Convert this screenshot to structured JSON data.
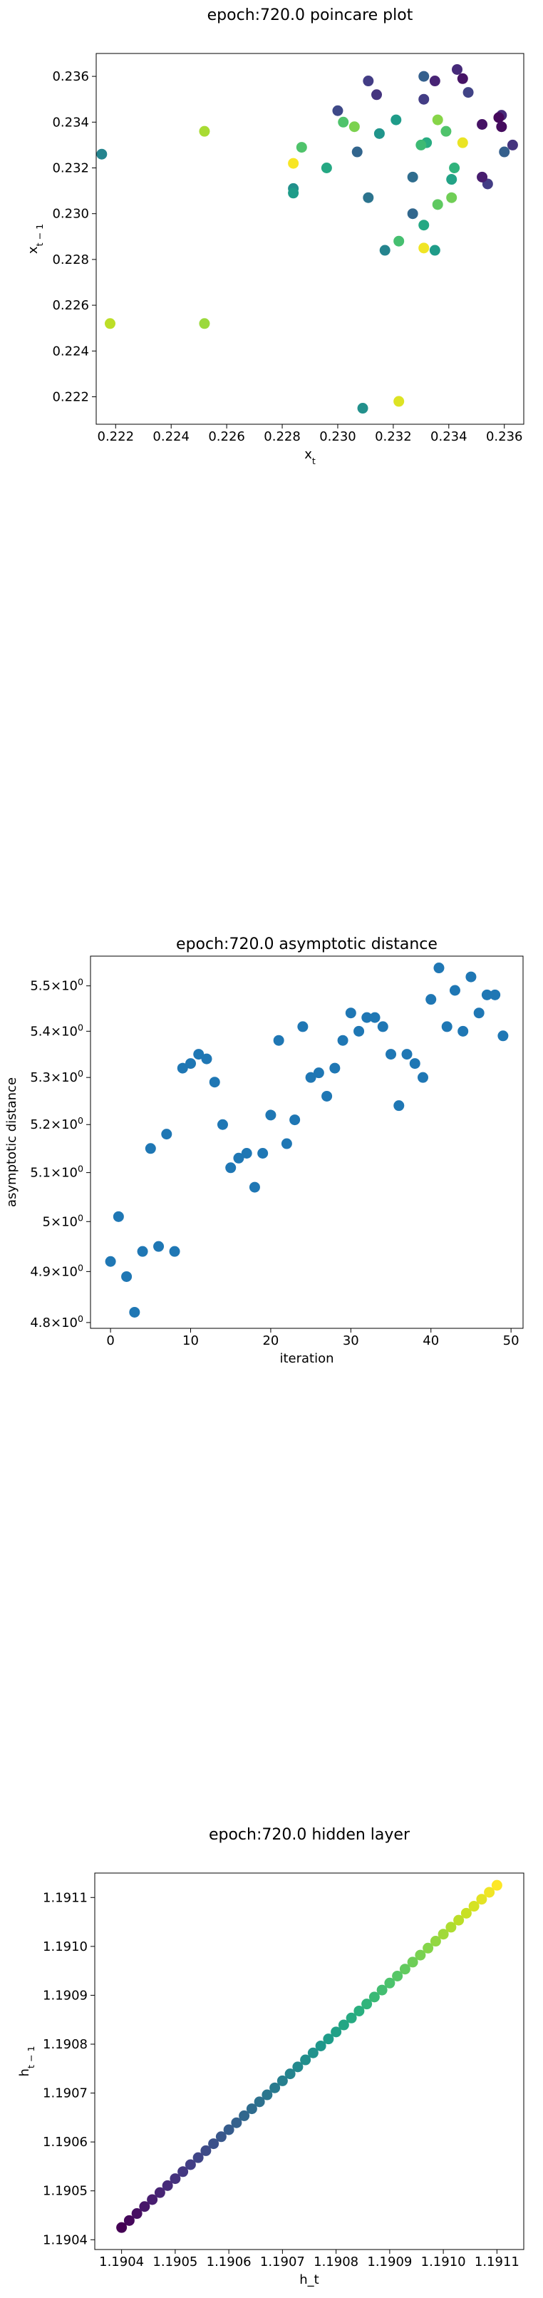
{
  "palette": [
    "#440154",
    "#482173",
    "#433e85",
    "#38598c",
    "#2d708e",
    "#25858e",
    "#1e9b8a",
    "#2ab07f",
    "#52c569",
    "#86d549",
    "#c2df23",
    "#fde725"
  ],
  "chart_data": [
    {
      "type": "scatter",
      "title": "epoch:720.0 poincare plot",
      "xlabel": "x_t",
      "ylabel": "x_{t-1}",
      "xlim": [
        0.2213,
        0.2367
      ],
      "ylim": [
        0.2208,
        0.237
      ],
      "xticks": [
        0.222,
        0.224,
        0.226,
        0.228,
        0.23,
        0.232,
        0.234,
        0.236
      ],
      "yticks": [
        0.222,
        0.224,
        0.226,
        0.228,
        0.23,
        0.232,
        0.234,
        0.236
      ],
      "tick_labels": [
        "0.222",
        "0.224",
        "0.226",
        "0.228",
        "0.230",
        "0.232",
        "0.234",
        "0.236"
      ],
      "colormap": "viridis",
      "points": [
        {
          "x": 0.2343,
          "y": 0.2363,
          "c": 0.12
        },
        {
          "x": 0.2335,
          "y": 0.2358,
          "c": 0.1
        },
        {
          "x": 0.2331,
          "y": 0.236,
          "c": 0.3
        },
        {
          "x": 0.2311,
          "y": 0.2358,
          "c": 0.18
        },
        {
          "x": 0.2314,
          "y": 0.2352,
          "c": 0.15
        },
        {
          "x": 0.2345,
          "y": 0.2359,
          "c": 0.05
        },
        {
          "x": 0.2347,
          "y": 0.2353,
          "c": 0.2
        },
        {
          "x": 0.2359,
          "y": 0.2343,
          "c": 0.12
        },
        {
          "x": 0.2358,
          "y": 0.2342,
          "c": 0.02
        },
        {
          "x": 0.2359,
          "y": 0.2338,
          "c": 0.03
        },
        {
          "x": 0.2331,
          "y": 0.235,
          "c": 0.18
        },
        {
          "x": 0.23,
          "y": 0.2345,
          "c": 0.22
        },
        {
          "x": 0.2352,
          "y": 0.2339,
          "c": 0.05
        },
        {
          "x": 0.2363,
          "y": 0.233,
          "c": 0.15
        },
        {
          "x": 0.236,
          "y": 0.2327,
          "c": 0.3
        },
        {
          "x": 0.2354,
          "y": 0.2313,
          "c": 0.18
        },
        {
          "x": 0.2352,
          "y": 0.2316,
          "c": 0.08
        },
        {
          "x": 0.2345,
          "y": 0.2331,
          "c": 0.97
        },
        {
          "x": 0.2336,
          "y": 0.2341,
          "c": 0.82
        },
        {
          "x": 0.2339,
          "y": 0.2336,
          "c": 0.72
        },
        {
          "x": 0.2332,
          "y": 0.2331,
          "c": 0.62
        },
        {
          "x": 0.233,
          "y": 0.233,
          "c": 0.68
        },
        {
          "x": 0.2321,
          "y": 0.2341,
          "c": 0.55
        },
        {
          "x": 0.2315,
          "y": 0.2335,
          "c": 0.52
        },
        {
          "x": 0.2306,
          "y": 0.2338,
          "c": 0.8
        },
        {
          "x": 0.2302,
          "y": 0.234,
          "c": 0.72
        },
        {
          "x": 0.2307,
          "y": 0.2327,
          "c": 0.32
        },
        {
          "x": 0.2327,
          "y": 0.2316,
          "c": 0.35
        },
        {
          "x": 0.2342,
          "y": 0.232,
          "c": 0.65
        },
        {
          "x": 0.2341,
          "y": 0.2315,
          "c": 0.58
        },
        {
          "x": 0.2341,
          "y": 0.2307,
          "c": 0.78
        },
        {
          "x": 0.2336,
          "y": 0.2304,
          "c": 0.75
        },
        {
          "x": 0.2327,
          "y": 0.23,
          "c": 0.33
        },
        {
          "x": 0.2331,
          "y": 0.2295,
          "c": 0.6
        },
        {
          "x": 0.2311,
          "y": 0.2307,
          "c": 0.38
        },
        {
          "x": 0.2322,
          "y": 0.2288,
          "c": 0.7
        },
        {
          "x": 0.2317,
          "y": 0.2284,
          "c": 0.45
        },
        {
          "x": 0.2331,
          "y": 0.2285,
          "c": 0.98
        },
        {
          "x": 0.2335,
          "y": 0.2284,
          "c": 0.55
        },
        {
          "x": 0.2296,
          "y": 0.232,
          "c": 0.6
        },
        {
          "x": 0.2287,
          "y": 0.2329,
          "c": 0.72
        },
        {
          "x": 0.2284,
          "y": 0.2322,
          "c": 0.99
        },
        {
          "x": 0.2284,
          "y": 0.2311,
          "c": 0.5
        },
        {
          "x": 0.2284,
          "y": 0.2309,
          "c": 0.55
        },
        {
          "x": 0.2252,
          "y": 0.2336,
          "c": 0.87
        },
        {
          "x": 0.2215,
          "y": 0.2326,
          "c": 0.45
        },
        {
          "x": 0.2218,
          "y": 0.2252,
          "c": 0.9
        },
        {
          "x": 0.2252,
          "y": 0.2252,
          "c": 0.85
        },
        {
          "x": 0.2309,
          "y": 0.2215,
          "c": 0.5
        },
        {
          "x": 0.2322,
          "y": 0.2218,
          "c": 0.95
        }
      ]
    },
    {
      "type": "scatter",
      "title": "epoch:720.0 asymptotic distance",
      "xlabel": "iteration",
      "ylabel": "asymptotic distance",
      "xlim": [
        -2.5,
        51.5
      ],
      "ylim": [
        4.7888,
        5.5665
      ],
      "yscale": "log",
      "xticks": [
        0,
        10,
        20,
        30,
        40,
        50
      ],
      "yticks": [
        4.8,
        4.9,
        5.0,
        5.1,
        5.2,
        5.3,
        5.4,
        5.5
      ],
      "ytick_mantissas": [
        "4.8",
        "4.9",
        "5",
        "5.1",
        "5.2",
        "5.3",
        "5.4",
        "5.5"
      ],
      "ytick_base": "10",
      "ytick_exponent": "0",
      "color": "#1f77b4",
      "points": [
        {
          "x": 0,
          "y": 4.92
        },
        {
          "x": 1,
          "y": 5.01
        },
        {
          "x": 2,
          "y": 4.89
        },
        {
          "x": 3,
          "y": 4.82
        },
        {
          "x": 4,
          "y": 4.94
        },
        {
          "x": 5,
          "y": 5.15
        },
        {
          "x": 6,
          "y": 4.95
        },
        {
          "x": 7,
          "y": 5.18
        },
        {
          "x": 8,
          "y": 4.94
        },
        {
          "x": 9,
          "y": 5.32
        },
        {
          "x": 10,
          "y": 5.33
        },
        {
          "x": 11,
          "y": 5.35
        },
        {
          "x": 12,
          "y": 5.34
        },
        {
          "x": 13,
          "y": 5.29
        },
        {
          "x": 14,
          "y": 5.2
        },
        {
          "x": 15,
          "y": 5.11
        },
        {
          "x": 16,
          "y": 5.13
        },
        {
          "x": 17,
          "y": 5.14
        },
        {
          "x": 18,
          "y": 5.07
        },
        {
          "x": 19,
          "y": 5.14
        },
        {
          "x": 20,
          "y": 5.22
        },
        {
          "x": 21,
          "y": 5.38
        },
        {
          "x": 22,
          "y": 5.16
        },
        {
          "x": 23,
          "y": 5.21
        },
        {
          "x": 24,
          "y": 5.41
        },
        {
          "x": 25,
          "y": 5.3
        },
        {
          "x": 26,
          "y": 5.31
        },
        {
          "x": 27,
          "y": 5.26
        },
        {
          "x": 28,
          "y": 5.32
        },
        {
          "x": 29,
          "y": 5.38
        },
        {
          "x": 30,
          "y": 5.44
        },
        {
          "x": 31,
          "y": 5.4
        },
        {
          "x": 32,
          "y": 5.43
        },
        {
          "x": 33,
          "y": 5.43
        },
        {
          "x": 34,
          "y": 5.41
        },
        {
          "x": 35,
          "y": 5.35
        },
        {
          "x": 36,
          "y": 5.24
        },
        {
          "x": 37,
          "y": 5.35
        },
        {
          "x": 38,
          "y": 5.33
        },
        {
          "x": 39,
          "y": 5.3
        },
        {
          "x": 40,
          "y": 5.47
        },
        {
          "x": 41,
          "y": 5.54
        },
        {
          "x": 42,
          "y": 5.41
        },
        {
          "x": 43,
          "y": 5.49
        },
        {
          "x": 44,
          "y": 5.4
        },
        {
          "x": 45,
          "y": 5.52
        },
        {
          "x": 46,
          "y": 5.44
        },
        {
          "x": 47,
          "y": 5.48
        },
        {
          "x": 48,
          "y": 5.48
        },
        {
          "x": 49,
          "y": 5.39
        }
      ]
    },
    {
      "type": "scatter",
      "title": "epoch:720.0 hidden layer",
      "xlabel": "h_t",
      "ylabel": "h_{t-1}",
      "xlim": [
        1.19035,
        1.19115
      ],
      "ylim": [
        1.19038,
        1.19115
      ],
      "xticks": [
        1.1904,
        1.1905,
        1.1906,
        1.1907,
        1.1908,
        1.1909,
        1.191,
        1.1911
      ],
      "yticks": [
        1.1904,
        1.1905,
        1.1906,
        1.1907,
        1.1908,
        1.1909,
        1.191,
        1.1911
      ],
      "tick_labels": [
        "1.1904",
        "1.1905",
        "1.1906",
        "1.1907",
        "1.1908",
        "1.1909",
        "1.1910",
        "1.1911"
      ],
      "colormap": "viridis",
      "x_start": 1.1904,
      "x_end": 1.1911,
      "y_start": 1.190425,
      "y_end": 1.191125,
      "n_points": 50
    }
  ]
}
